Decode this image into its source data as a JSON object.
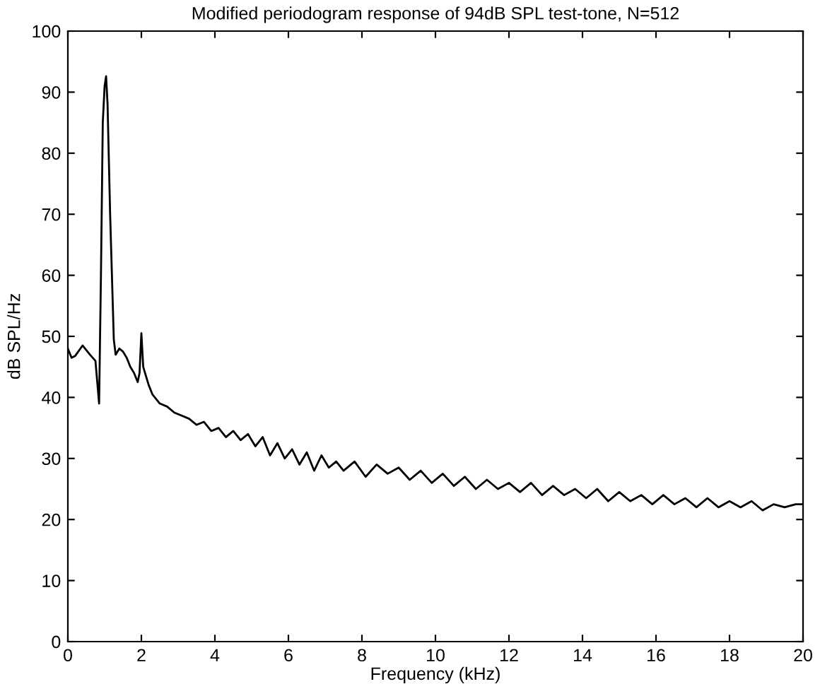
{
  "chart_data": {
    "type": "line",
    "title": "Modified periodogram response of 94dB SPL test-tone, N=512",
    "xlabel": "Frequency (kHz)",
    "ylabel": "dB SPL/Hz",
    "x": [
      0,
      0.1,
      0.2,
      0.4,
      0.6,
      0.75,
      0.85,
      0.9,
      0.95,
      1.0,
      1.04,
      1.08,
      1.15,
      1.25,
      1.3,
      1.4,
      1.5,
      1.6,
      1.7,
      1.8,
      1.9,
      1.95,
      2.0,
      2.05,
      2.1,
      2.2,
      2.3,
      2.5,
      2.7,
      2.9,
      3.1,
      3.3,
      3.5,
      3.7,
      3.9,
      4.1,
      4.3,
      4.5,
      4.7,
      4.9,
      5.1,
      5.3,
      5.5,
      5.7,
      5.9,
      6.1,
      6.3,
      6.5,
      6.7,
      6.9,
      7.1,
      7.3,
      7.5,
      7.8,
      8.1,
      8.4,
      8.7,
      9.0,
      9.3,
      9.6,
      9.9,
      10.2,
      10.5,
      10.8,
      11.1,
      11.4,
      11.7,
      12.0,
      12.3,
      12.6,
      12.9,
      13.2,
      13.5,
      13.8,
      14.1,
      14.4,
      14.7,
      15.0,
      15.3,
      15.6,
      15.9,
      16.2,
      16.5,
      16.8,
      17.1,
      17.4,
      17.7,
      18.0,
      18.3,
      18.6,
      18.9,
      19.2,
      19.5,
      19.8,
      20
    ],
    "values": [
      48,
      46.5,
      46.8,
      48.5,
      47,
      46,
      39,
      60,
      85,
      91,
      92.6,
      88,
      70,
      49.5,
      47,
      48,
      47.5,
      46.5,
      45,
      44,
      42.5,
      44,
      50.5,
      45,
      44,
      42,
      40.5,
      39,
      38.5,
      37.5,
      37,
      36.5,
      35.5,
      36,
      34.5,
      35,
      33.5,
      34.5,
      33,
      34,
      32,
      33.5,
      30.5,
      32.5,
      30,
      31.5,
      29,
      31,
      28,
      30.5,
      28.5,
      29.5,
      28,
      29.5,
      27,
      29,
      27.5,
      28.5,
      26.5,
      28,
      26,
      27.5,
      25.5,
      27,
      25,
      26.5,
      25,
      26,
      24.5,
      26,
      24,
      25.5,
      24,
      25,
      23.5,
      25,
      23,
      24.5,
      23,
      24,
      22.5,
      24,
      22.5,
      23.5,
      22,
      23.5,
      22,
      23,
      22,
      23,
      21.5,
      22.5,
      22,
      22.5,
      22.5
    ],
    "color": "#000000",
    "xlim": [
      0,
      20
    ],
    "ylim": [
      0,
      100
    ],
    "xticks": [
      0,
      2,
      4,
      6,
      8,
      10,
      12,
      14,
      16,
      18,
      20
    ],
    "yticks": [
      0,
      10,
      20,
      30,
      40,
      50,
      60,
      70,
      80,
      90,
      100
    ],
    "grid": false,
    "line_style": "solid",
    "marker": "none"
  }
}
